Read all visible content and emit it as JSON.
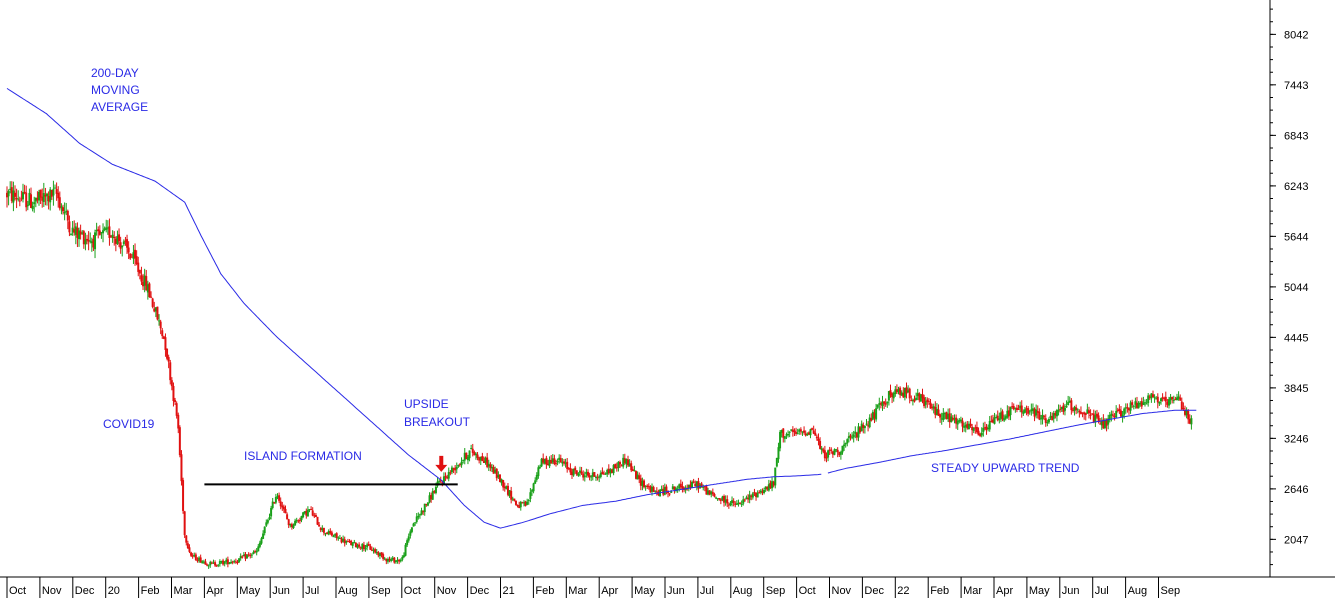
{
  "chart_data": {
    "type": "candlestick",
    "ylim": [
      1600,
      8450
    ],
    "y_ticks": [
      "8042",
      "7443",
      "6843",
      "6243",
      "5644",
      "5044",
      "4445",
      "3845",
      "3246",
      "2646",
      "2047"
    ],
    "x_tick_labels": [
      "Oct",
      "Nov",
      "Dec",
      "20",
      "Feb",
      "Mar",
      "Apr",
      "May",
      "Jun",
      "Jul",
      "Aug",
      "Sep",
      "Oct",
      "Nov",
      "Dec",
      "21",
      "Feb",
      "Mar",
      "Apr",
      "May",
      "Jun",
      "Jul",
      "Aug",
      "Sep",
      "Oct",
      "Nov",
      "Dec",
      "22",
      "Feb",
      "Mar",
      "Apr",
      "May",
      "Jun",
      "Jul",
      "Aug",
      "Sep"
    ],
    "price_path": [
      [
        0,
        6150
      ],
      [
        0.8,
        6050
      ],
      [
        1.5,
        6150
      ],
      [
        2.0,
        5700
      ],
      [
        2.6,
        5600
      ],
      [
        3.2,
        5700
      ],
      [
        3.8,
        5400
      ],
      [
        4.3,
        5000
      ],
      [
        4.8,
        4400
      ],
      [
        5.2,
        3400
      ],
      [
        5.4,
        2100
      ],
      [
        5.6,
        1850
      ],
      [
        6.2,
        1750
      ],
      [
        7.0,
        1800
      ],
      [
        7.6,
        1900
      ],
      [
        8.2,
        2600
      ],
      [
        8.6,
        2200
      ],
      [
        9.2,
        2400
      ],
      [
        9.6,
        2150
      ],
      [
        10.4,
        2000
      ],
      [
        11.0,
        1950
      ],
      [
        11.6,
        1800
      ],
      [
        12.0,
        1800
      ],
      [
        12.3,
        2200
      ],
      [
        12.8,
        2500
      ],
      [
        13.1,
        2700
      ],
      [
        13.6,
        2900
      ],
      [
        14.1,
        3100
      ],
      [
        14.6,
        2950
      ],
      [
        15.1,
        2700
      ],
      [
        15.5,
        2450
      ],
      [
        15.8,
        2450
      ],
      [
        16.2,
        2950
      ],
      [
        16.7,
        3000
      ],
      [
        17.2,
        2850
      ],
      [
        17.8,
        2800
      ],
      [
        18.3,
        2850
      ],
      [
        18.8,
        3000
      ],
      [
        19.2,
        2750
      ],
      [
        19.7,
        2600
      ],
      [
        20.3,
        2650
      ],
      [
        21.0,
        2700
      ],
      [
        21.5,
        2550
      ],
      [
        22.2,
        2450
      ],
      [
        22.8,
        2600
      ],
      [
        23.3,
        2700
      ],
      [
        23.5,
        3300
      ],
      [
        24.0,
        3300
      ],
      [
        24.5,
        3350
      ],
      [
        24.8,
        3050
      ],
      [
        25.3,
        3100
      ],
      [
        25.8,
        3300
      ],
      [
        26.3,
        3500
      ],
      [
        26.8,
        3750
      ],
      [
        27.3,
        3800
      ],
      [
        27.8,
        3700
      ],
      [
        28.3,
        3550
      ],
      [
        28.8,
        3450
      ],
      [
        29.3,
        3350
      ],
      [
        29.6,
        3300
      ],
      [
        30.1,
        3500
      ],
      [
        30.7,
        3600
      ],
      [
        31.2,
        3550
      ],
      [
        31.7,
        3450
      ],
      [
        32.2,
        3650
      ],
      [
        32.8,
        3550
      ],
      [
        33.3,
        3400
      ],
      [
        33.8,
        3550
      ],
      [
        34.3,
        3650
      ],
      [
        34.8,
        3750
      ],
      [
        35.2,
        3650
      ],
      [
        35.6,
        3700
      ],
      [
        36.0,
        3450
      ]
    ],
    "moving_average_200_day": [
      [
        0,
        7400
      ],
      [
        1.2,
        7100
      ],
      [
        2.2,
        6750
      ],
      [
        3.2,
        6500
      ],
      [
        4.5,
        6300
      ],
      [
        5.4,
        6050
      ],
      [
        5.9,
        5650
      ],
      [
        6.5,
        5200
      ],
      [
        7.2,
        4850
      ],
      [
        8.2,
        4450
      ],
      [
        9.2,
        4100
      ],
      [
        10.2,
        3750
      ],
      [
        11.2,
        3400
      ],
      [
        12.2,
        3050
      ],
      [
        13.2,
        2750
      ],
      [
        13.9,
        2450
      ],
      [
        14.5,
        2250
      ],
      [
        15.0,
        2180
      ],
      [
        15.7,
        2250
      ],
      [
        16.5,
        2350
      ],
      [
        17.5,
        2450
      ],
      [
        18.5,
        2500
      ],
      [
        19.5,
        2580
      ],
      [
        20.5,
        2640
      ],
      [
        21.5,
        2700
      ],
      [
        22.5,
        2760
      ],
      [
        23.3,
        2790
      ],
      [
        24.0,
        2800
      ],
      [
        24.8,
        2820
      ],
      [
        25.5,
        2890
      ],
      [
        26.5,
        2960
      ],
      [
        27.5,
        3040
      ],
      [
        28.5,
        3100
      ],
      [
        29.5,
        3170
      ],
      [
        30.5,
        3240
      ],
      [
        31.5,
        3320
      ],
      [
        32.5,
        3400
      ],
      [
        33.5,
        3470
      ],
      [
        34.5,
        3540
      ],
      [
        35.5,
        3580
      ],
      [
        36.2,
        3580
      ]
    ],
    "moving_average_breaks_after_month_index": 24.8,
    "island_formation_level": 2700,
    "island_formation_range": [
      6,
      13.7
    ],
    "breakout_arrow_at": [
      13.2,
      2800
    ],
    "annotations": {
      "ma_label": [
        "200-DAY",
        "MOVING",
        "AVERAGE"
      ],
      "covid": "COVID19",
      "island": "ISLAND FORMATION",
      "breakout": [
        "UPSIDE",
        "BREAKOUT"
      ],
      "trend": "STEADY UPWARD TREND"
    },
    "colors": {
      "up_candle": "#1aa01a",
      "down_candle": "#e01010",
      "moving_average": "#2a2ae6",
      "annotation_text": "#2a2ae6",
      "island_line": "#000000",
      "arrow": "#e01010",
      "axis": "#000000"
    }
  }
}
